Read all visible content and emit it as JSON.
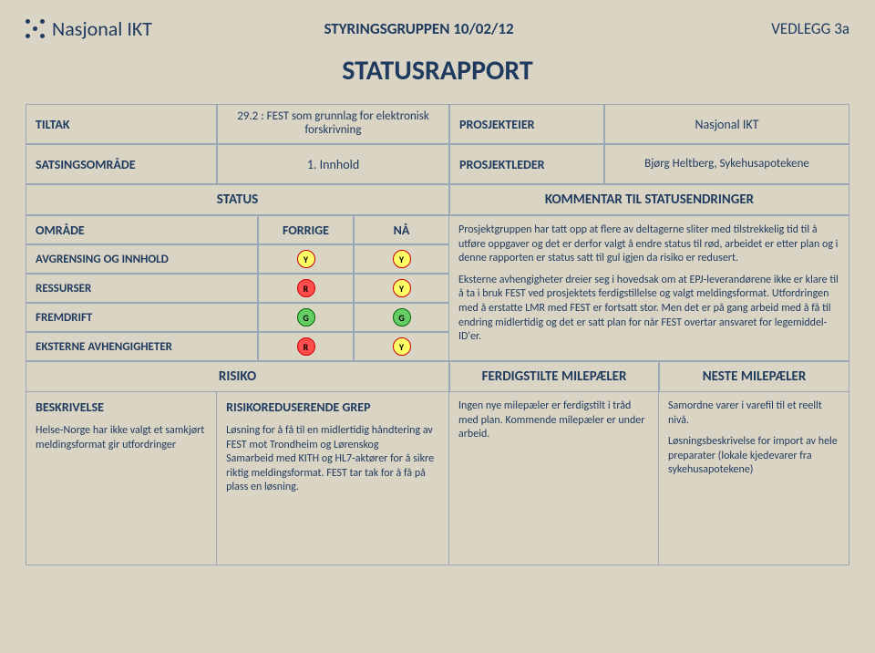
{
  "header": {
    "logo_text": "Nasjonal IKT",
    "center_title": "STYRINGSGRUPPEN 10/02/12",
    "vedlegg": "VEDLEGG 3a"
  },
  "report_title": "STATUSRAPPORT",
  "meta": {
    "tiltak_label": "TILTAK",
    "tiltak_value": "29.2 : FEST som grunnlag for elektronisk forskrivning",
    "prosjekteier_label": "PROSJEKTEIER",
    "prosjekteier_value": "Nasjonal IKT",
    "satsingsomrade_label": "SATSINGSOMRÅDE",
    "satsingsomrade_value": "1. Innhold",
    "prosjektleder_label": "PROSJEKTLEDER",
    "prosjektleder_value": "Bjørg Heltberg, Sykehusapotekene"
  },
  "status_headers": {
    "status": "STATUS",
    "kommentar": "KOMMENTAR TIL STATUSENDRINGER",
    "omrade": "OMRÅDE",
    "forrige": "FORRIGE",
    "na": "NÅ"
  },
  "status_rows": [
    {
      "label": "AVGRENSING OG INNHOLD",
      "prev": "Y",
      "now": "Y"
    },
    {
      "label": "RESSURSER",
      "prev": "R",
      "now": "Y"
    },
    {
      "label": "FREMDRIFT",
      "prev": "G",
      "now": "G"
    },
    {
      "label": "EKSTERNE AVHENGIGHETER",
      "prev": "R",
      "now": "Y"
    }
  ],
  "status_comment": {
    "p1": "Prosjektgruppen har tatt opp at flere av deltagerne sliter med tilstrekkelig tid til å utføre oppgaver og det er derfor valgt å endre status til rød, arbeidet er etter plan og i denne rapporten er status satt til gul igjen da risiko er redusert.",
    "p2": "Eksterne avhengigheter dreier seg i hovedsak om at EPJ-leverandørene ikke er klare til å ta i bruk FEST ved prosjektets ferdigstillelse og valgt meldingsformat. Utfordringen med å erstatte LMR med FEST er fortsatt stor. Men det er på gang arbeid med å få til endring midlertidig og det er satt plan for når FEST overtar ansvaret for legemiddel-ID'er."
  },
  "lower_headers": {
    "risiko": "RISIKO",
    "ferdigstilte": "FERDIGSTILTE MILEPÆLER",
    "neste": "NESTE MILEPÆLER"
  },
  "lower": {
    "beskrivelse_label": "BESKRIVELSE",
    "beskrivelse_text": "Helse-Norge har ikke valgt et samkjørt meldingsformat gir utfordringer",
    "grep_label": "RISIKOREDUSERENDE GREP",
    "grep_text": "Løsning for å få til en midlertidig håndtering av FEST mot Trondheim og Lørenskog\nSamarbeid med KITH og HL7-aktører for å sikre riktig meldingsformat. FEST tar tak for å få på plass en løsning.",
    "ferdigstilte_text": "Ingen nye milepæler er ferdigstilt i tråd med plan. Kommende milepæler er under arbeid.",
    "neste_p1": "Samordne varer i varefil til et reellt nivå.",
    "neste_p2": "Løsningsbeskrivelse for import av hele preparater (lokale kjedevarer fra sykehusapotekene)"
  },
  "colors": {
    "page_bg": "#d9d4c3",
    "text": "#1f3a5f",
    "border": "#9aa7b5",
    "Y": "#ffff66",
    "R": "#ff4d4d",
    "G": "#66cc66"
  }
}
